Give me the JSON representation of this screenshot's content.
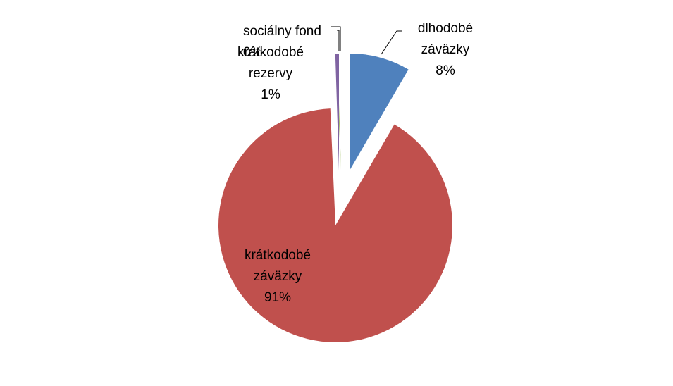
{
  "chart_data": {
    "type": "pie",
    "title": "",
    "exploded": true,
    "legend": "none",
    "slices": [
      {
        "name": "dlhodobé záväzky",
        "label_lines": [
          "dlhodobé",
          "záväzky"
        ],
        "percent_label": "8%",
        "value": 8.4,
        "color": "#4F81BD"
      },
      {
        "name": "krátkodobé záväzky",
        "label_lines": [
          "krátkodobé",
          "záväzky"
        ],
        "percent_label": "91%",
        "value": 90.9,
        "color": "#C0504D"
      },
      {
        "name": "sociálny fond",
        "label_lines": [
          "sociálny fond"
        ],
        "percent_label": "0%",
        "value": 0.2,
        "color": "#9BBB59"
      },
      {
        "name": "krátkodobé rezervy",
        "label_lines": [
          "krátkodobé",
          "rezervy"
        ],
        "percent_label": "1%",
        "value": 0.5,
        "color": "#8064A2"
      }
    ]
  }
}
